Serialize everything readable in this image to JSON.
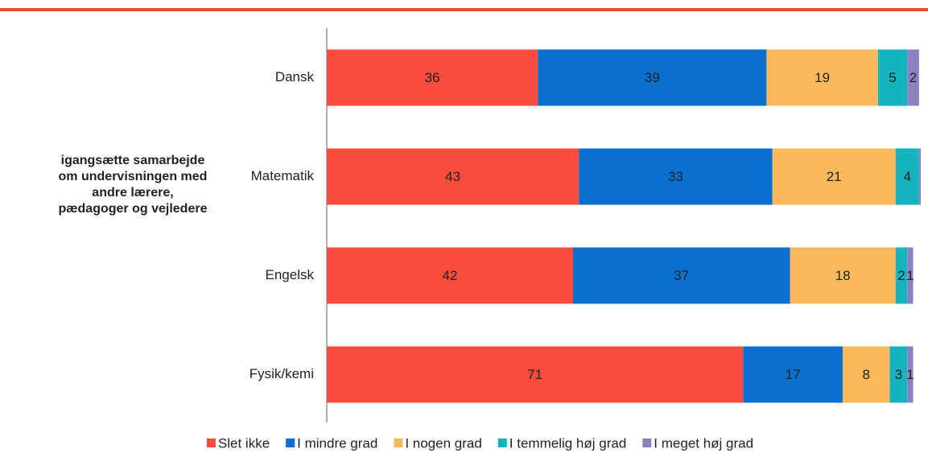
{
  "chart_data": {
    "type": "stacked_barh",
    "group_label": "igangsætte samarbejde om undervisningen med andre lærere, pædagoger og vejledere",
    "categories": [
      "Dansk",
      "Matematik",
      "Engelsk",
      "Fysik/kemi"
    ],
    "series": [
      {
        "name": "Slet ikke",
        "color": "#f84c3c",
        "values": [
          36,
          43,
          42,
          71
        ]
      },
      {
        "name": "I mindre grad",
        "color": "#0a6fce",
        "values": [
          39,
          33,
          37,
          17
        ]
      },
      {
        "name": "I nogen grad",
        "color": "#fbb95c",
        "values": [
          19,
          21,
          18,
          8
        ]
      },
      {
        "name": "I temmelig høj grad",
        "color": "#14b3bd",
        "values": [
          5,
          4,
          2,
          3
        ]
      },
      {
        "name": "I meget høj grad",
        "color": "#8b82c0",
        "values": [
          2,
          0.3,
          1,
          1
        ],
        "value_labels": [
          "2",
          null,
          "1",
          "1"
        ]
      }
    ],
    "legend": "bottom"
  }
}
